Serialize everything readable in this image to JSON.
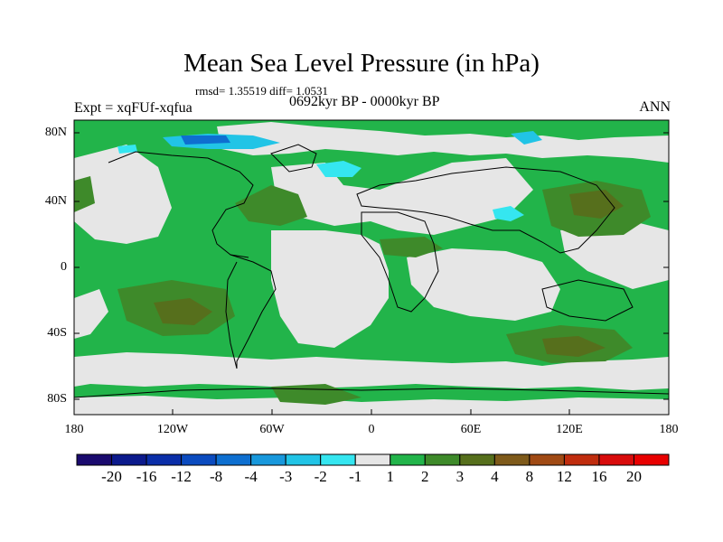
{
  "title": "Mean Sea Level Pressure (in hPa)",
  "stats": "rmsd= 1.35519 diff= 1.0531",
  "experiment": "Expt = xqFUf-xqfua",
  "period": "0692kyr BP - 0000kyr BP",
  "season": "ANN",
  "lat_labels": [
    "80N",
    "40N",
    "0",
    "40S",
    "80S"
  ],
  "lon_labels": [
    "180",
    "120W",
    "60W",
    "0",
    "60E",
    "120E",
    "180"
  ],
  "colorbar": {
    "labels": [
      "-20",
      "-16",
      "-12",
      "-8",
      "-4",
      "-3",
      "-2",
      "-1",
      "1",
      "2",
      "3",
      "4",
      "8",
      "12",
      "16",
      "20"
    ],
    "colors": [
      "#1a0a6e",
      "#0c1a8c",
      "#0a2ea8",
      "#0b4bbf",
      "#0e6fd0",
      "#1898dc",
      "#21c4e6",
      "#35e6f0",
      "#e6e6e6",
      "#22b44a",
      "#3e8a2a",
      "#566f1c",
      "#7e5a1a",
      "#a04a14",
      "#c02d0e",
      "#d80c0c",
      "#e80000"
    ]
  },
  "colors": {
    "background": "#e6e6e6",
    "positive_light": "#22b44a",
    "positive_mid": "#3e8a2a",
    "positive_strong": "#566f1c",
    "negative_light": "#35e6f0",
    "negative_mid": "#21c4e6"
  }
}
